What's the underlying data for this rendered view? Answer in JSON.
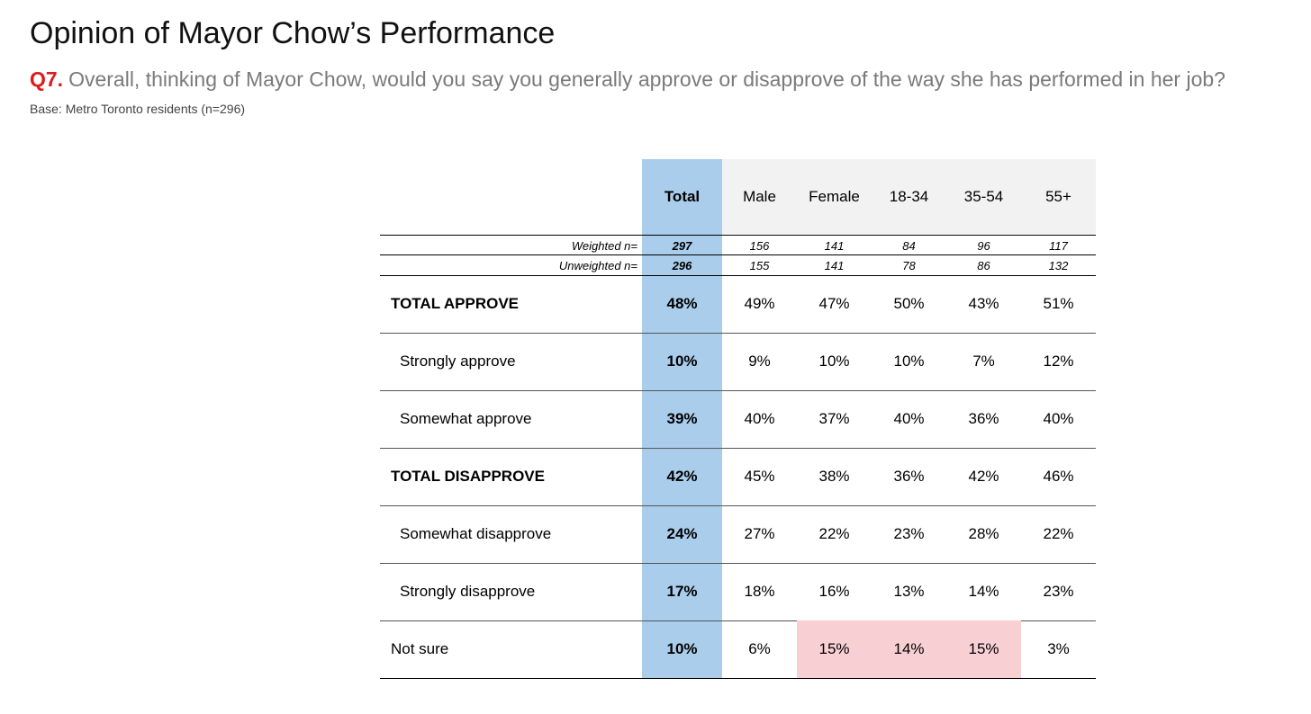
{
  "title": "Opinion of Mayor Chow’s Performance",
  "question": {
    "number": "Q7.",
    "text": "Overall, thinking of Mayor Chow, would you say you generally approve or disapprove of the way she has performed in her job?"
  },
  "base": "Base: Metro Toronto residents (n=296)",
  "colors": {
    "total_column": "#a9cdeb",
    "header_bg": "#f2f2f2",
    "highlight": "#f8d0d3",
    "question_number": "#e0191b"
  },
  "table": {
    "columns": [
      "Total",
      "Male",
      "Female",
      "18-34",
      "35-54",
      "55+"
    ],
    "weighted": {
      "label": "Weighted n=",
      "values": [
        "297",
        "156",
        "141",
        "84",
        "96",
        "117"
      ]
    },
    "unweighted": {
      "label": "Unweighted n=",
      "values": [
        "296",
        "155",
        "141",
        "78",
        "86",
        "132"
      ]
    },
    "rows": [
      {
        "label": "TOTAL APPROVE",
        "values": [
          "48%",
          "49%",
          "47%",
          "50%",
          "43%",
          "51%"
        ]
      },
      {
        "label": "Strongly approve",
        "values": [
          "10%",
          "9%",
          "10%",
          "10%",
          "7%",
          "12%"
        ]
      },
      {
        "label": "Somewhat approve",
        "values": [
          "39%",
          "40%",
          "37%",
          "40%",
          "36%",
          "40%"
        ]
      },
      {
        "label": "TOTAL DISAPPROVE",
        "values": [
          "42%",
          "45%",
          "38%",
          "36%",
          "42%",
          "46%"
        ]
      },
      {
        "label": "Somewhat disapprove",
        "values": [
          "24%",
          "27%",
          "22%",
          "23%",
          "28%",
          "22%"
        ]
      },
      {
        "label": "Strongly disapprove",
        "values": [
          "17%",
          "18%",
          "16%",
          "13%",
          "14%",
          "23%"
        ]
      },
      {
        "label": "Not sure",
        "values": [
          "10%",
          "6%",
          "15%",
          "14%",
          "15%",
          "3%"
        ]
      }
    ]
  }
}
